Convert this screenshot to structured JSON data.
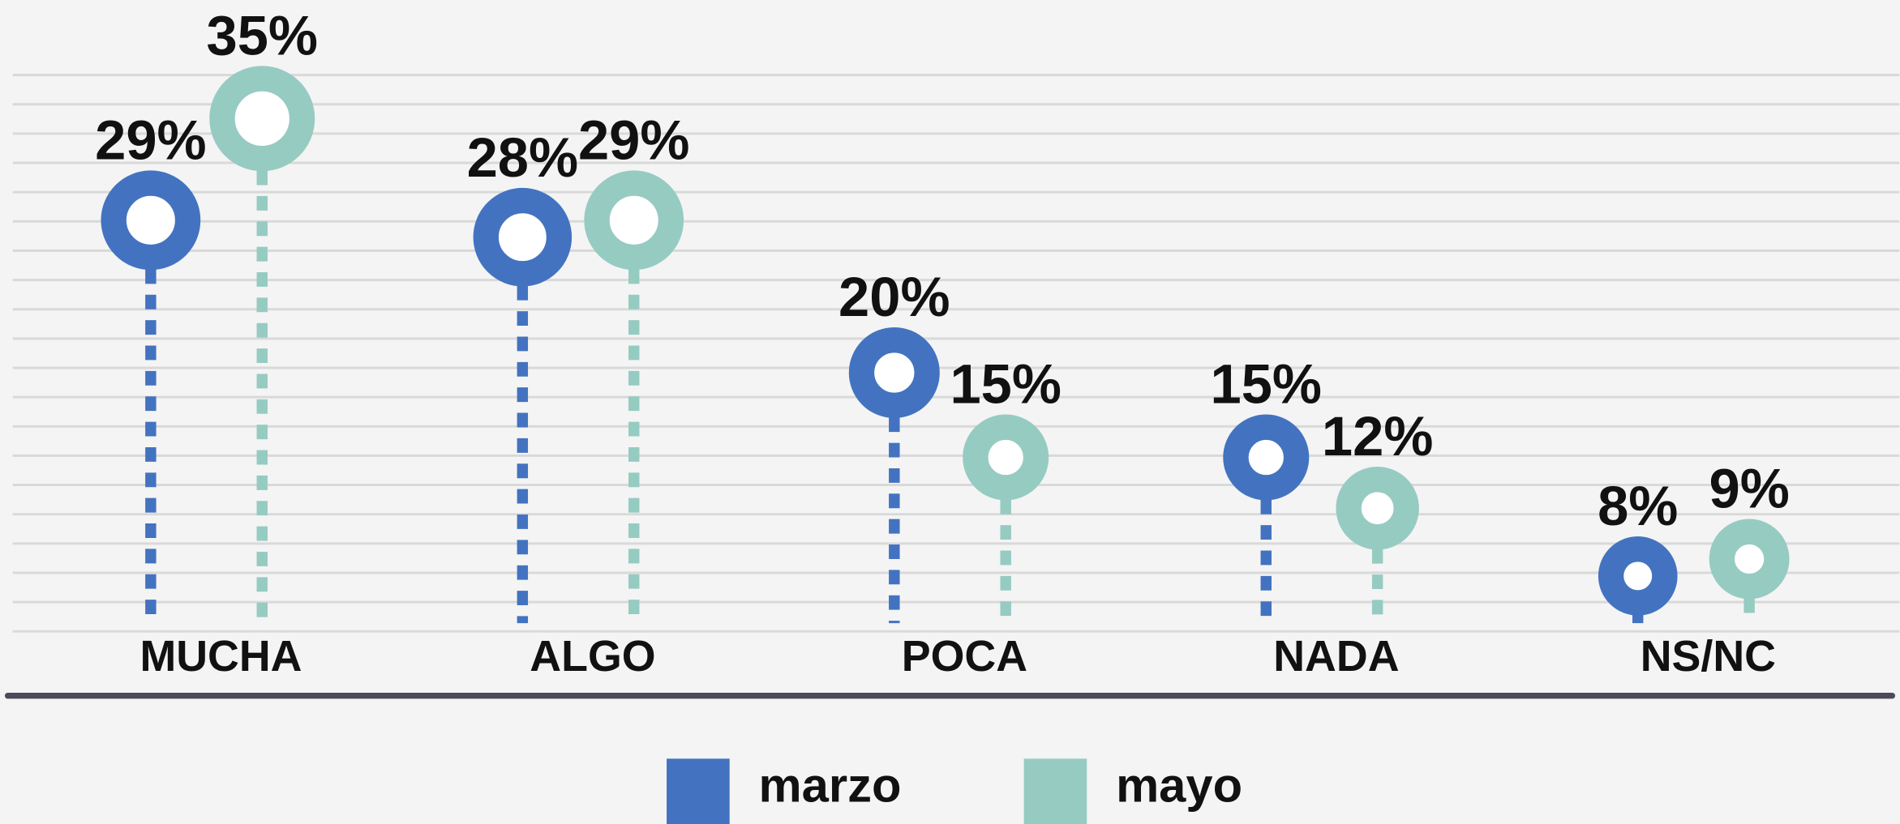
{
  "chart_data": {
    "type": "lollipop",
    "categories": [
      "MUCHA",
      "ALGO",
      "POCA",
      "NADA",
      "NS/NC"
    ],
    "series": [
      {
        "name": "marzo",
        "color": "#4373c0",
        "values": [
          29,
          28,
          20,
          15,
          8
        ],
        "value_labels": [
          "29%",
          "28%",
          "20%",
          "15%",
          "8%"
        ]
      },
      {
        "name": "mayo",
        "color": "#96cbc2",
        "values": [
          35,
          29,
          15,
          12,
          9
        ],
        "value_labels": [
          "35%",
          "29%",
          "15%",
          "12%",
          "9%"
        ]
      }
    ],
    "legend": "bottom"
  }
}
